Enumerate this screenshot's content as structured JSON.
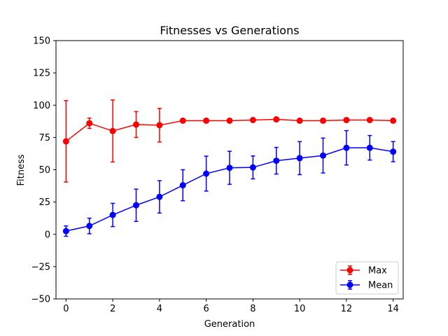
{
  "chart_data": {
    "type": "line",
    "title": "Fitnesses vs Generations",
    "xlabel": "Generation",
    "ylabel": "Fitness",
    "xlim": [
      -0.43,
      14.43
    ],
    "ylim": [
      -50,
      150
    ],
    "xticks": [
      0,
      2,
      4,
      6,
      8,
      10,
      12,
      14
    ],
    "yticks": [
      -50,
      -25,
      0,
      25,
      50,
      75,
      100,
      125,
      150
    ],
    "grid": false,
    "legend_position": "lower-right",
    "x": [
      0,
      1,
      2,
      3,
      4,
      5,
      6,
      7,
      8,
      9,
      10,
      11,
      12,
      13,
      14
    ],
    "series": [
      {
        "name": "Max",
        "color": "#ff0000",
        "values": [
          72,
          86,
          80,
          85,
          84.5,
          88,
          88,
          88,
          88.5,
          89,
          88,
          88,
          88.5,
          88.5,
          88
        ],
        "errors": [
          31.5,
          4,
          24,
          10,
          13,
          0,
          0,
          0,
          0,
          0,
          0,
          0,
          0,
          0,
          0
        ]
      },
      {
        "name": "Mean",
        "color": "#0000ff",
        "values": [
          2.5,
          6.5,
          15,
          22.5,
          29,
          38,
          47,
          51.5,
          51.8,
          57,
          59,
          61,
          67,
          67,
          64
        ],
        "errors": [
          4,
          6,
          9,
          12.5,
          12.5,
          12,
          13.5,
          12.8,
          8.9,
          10.3,
          12.8,
          13.5,
          13.3,
          9.5,
          7.8
        ]
      }
    ]
  }
}
